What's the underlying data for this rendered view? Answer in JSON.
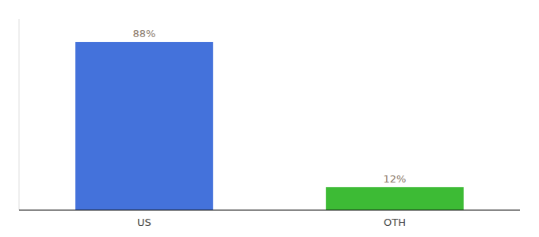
{
  "chart_data": {
    "type": "bar",
    "categories": [
      "US",
      "OTH"
    ],
    "values": [
      88,
      12
    ],
    "value_labels": [
      "88%",
      "12%"
    ],
    "colors": [
      "#4472db",
      "#3dbb35"
    ],
    "ylim": [
      0,
      100
    ],
    "data_labels": true,
    "tick_labels": "x",
    "grid": false
  }
}
